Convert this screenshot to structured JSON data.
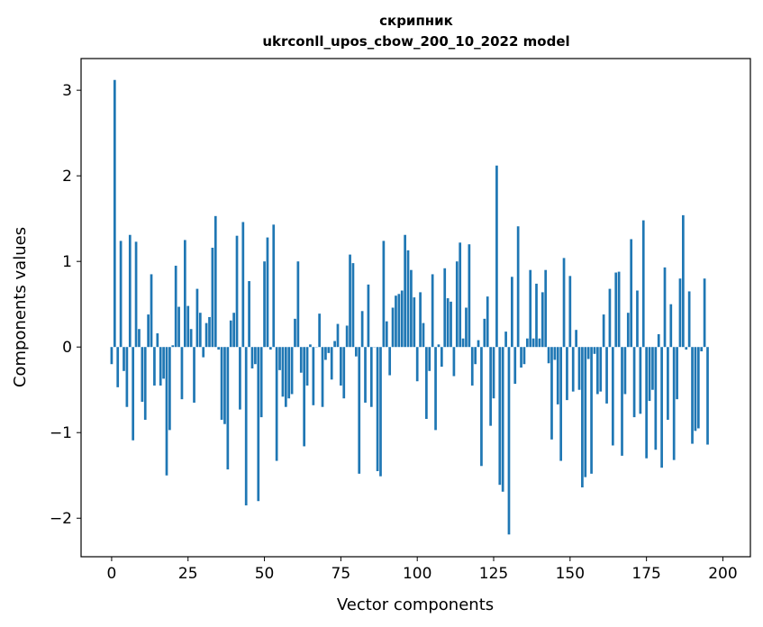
{
  "chart_data": {
    "type": "bar",
    "title_line1": "скрипник",
    "title_line2": "ukrconll_upos_cbow_200_10_2022 model",
    "xlabel": "Vector components",
    "ylabel": "Components values",
    "xlim": [
      -10,
      209
    ],
    "ylim": [
      -2.45,
      3.37
    ],
    "xticks": [
      0,
      25,
      50,
      75,
      100,
      125,
      150,
      175,
      200
    ],
    "xtick_labels": [
      "0",
      "25",
      "50",
      "75",
      "100",
      "125",
      "150",
      "175",
      "200"
    ],
    "yticks": [
      -2,
      -1,
      0,
      1,
      2,
      3
    ],
    "ytick_labels": [
      "−2",
      "−1",
      "0",
      "1",
      "2",
      "3"
    ],
    "grid": false,
    "bar_color": "#1f77b4",
    "values": [
      -0.2,
      3.12,
      -0.47,
      1.24,
      -0.28,
      -0.7,
      1.31,
      -1.09,
      1.23,
      0.21,
      -0.64,
      -0.85,
      0.38,
      0.85,
      -0.45,
      0.16,
      -0.45,
      -0.37,
      -1.5,
      -0.97,
      0.02,
      0.95,
      0.47,
      -0.61,
      1.25,
      0.48,
      0.21,
      -0.65,
      0.68,
      0.4,
      -0.12,
      0.28,
      0.35,
      1.16,
      1.53,
      -0.03,
      -0.85,
      -0.9,
      -1.43,
      0.31,
      0.4,
      1.3,
      -0.73,
      1.46,
      -1.85,
      0.77,
      -0.25,
      -0.2,
      -1.8,
      -0.82,
      1.0,
      1.28,
      -0.03,
      1.43,
      -1.33,
      -0.27,
      -0.58,
      -0.7,
      -0.6,
      -0.55,
      0.33,
      1.0,
      -0.3,
      -1.16,
      -0.45,
      0.03,
      -0.68,
      0.0,
      0.39,
      -0.7,
      -0.15,
      -0.07,
      -0.38,
      0.07,
      0.27,
      -0.45,
      -0.6,
      0.25,
      1.08,
      0.98,
      -0.11,
      -1.48,
      0.42,
      -0.65,
      0.73,
      -0.7,
      0.0,
      -1.45,
      -1.51,
      1.24,
      0.3,
      -0.33,
      0.46,
      0.6,
      0.62,
      0.66,
      1.31,
      1.13,
      0.9,
      0.58,
      -0.4,
      0.64,
      0.28,
      -0.84,
      -0.28,
      0.85,
      -0.97,
      0.03,
      -0.23,
      0.92,
      0.57,
      0.53,
      -0.34,
      1.0,
      1.22,
      0.1,
      0.46,
      1.2,
      -0.45,
      -0.2,
      0.08,
      -1.39,
      0.33,
      0.59,
      -0.92,
      -0.6,
      2.12,
      -1.61,
      -1.69,
      0.18,
      -2.19,
      0.82,
      -0.43,
      1.41,
      -0.24,
      -0.2,
      0.1,
      0.9,
      0.1,
      0.74,
      0.1,
      0.64,
      0.9,
      -0.19,
      -1.08,
      -0.15,
      -0.67,
      -1.33,
      1.04,
      -0.62,
      0.83,
      -0.52,
      0.2,
      -0.5,
      -1.64,
      -1.52,
      -0.14,
      -1.48,
      -0.08,
      -0.55,
      -0.52,
      0.38,
      -0.66,
      0.68,
      -1.15,
      0.87,
      0.88,
      -1.27,
      -0.55,
      0.4,
      1.26,
      -0.82,
      0.66,
      -0.78,
      1.48,
      -1.3,
      -0.63,
      -0.5,
      -1.2,
      0.15,
      -1.41,
      0.93,
      -0.85,
      0.5,
      -1.32,
      -0.61,
      0.8,
      1.54,
      -0.03,
      0.65,
      -1.13,
      -0.98,
      -0.95,
      -0.05,
      0.8,
      -1.14
    ]
  }
}
